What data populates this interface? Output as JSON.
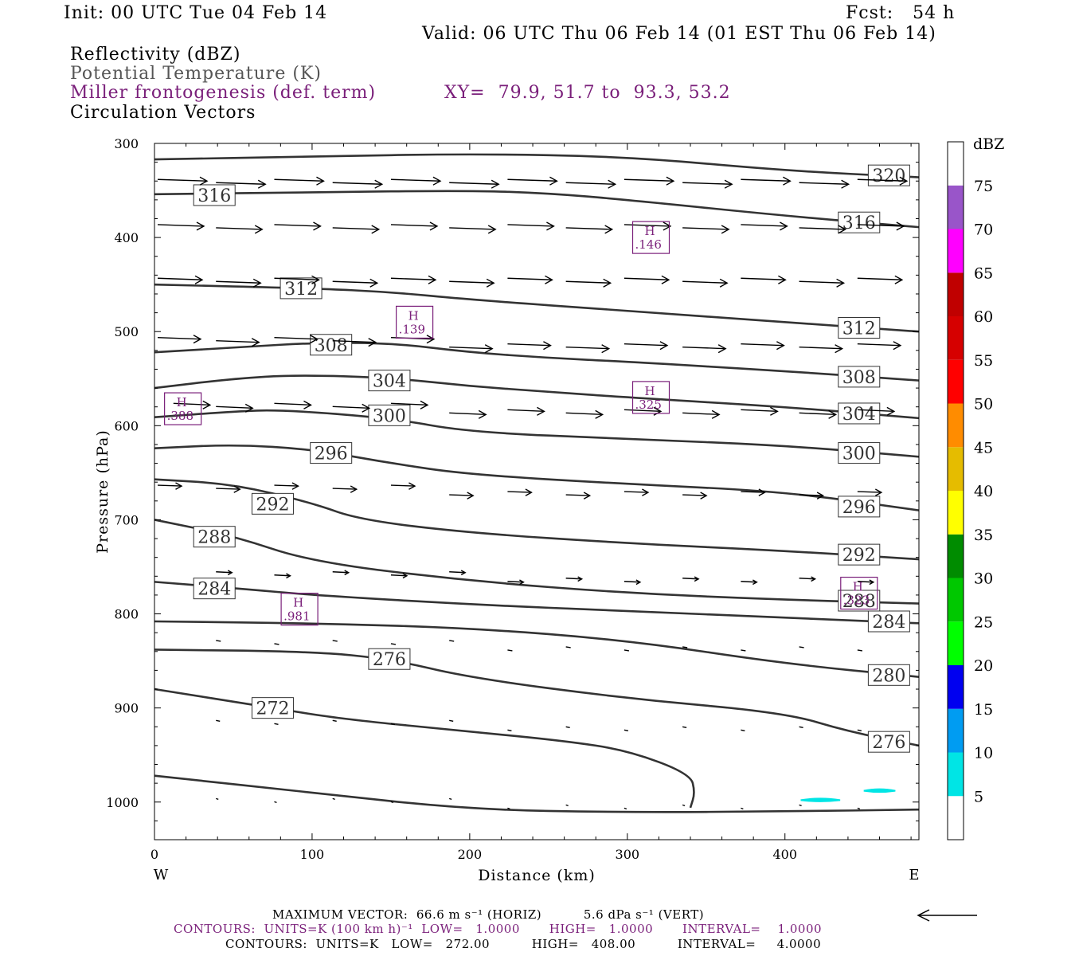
{
  "header": {
    "init": "Init: 00 UTC Tue 04 Feb 14",
    "fcst": "Fcst:   54 h",
    "valid": "Valid: 06 UTC Thu 06 Feb 14 (01 EST Thu 06 Feb 14)",
    "field1": "Reflectivity (dBZ)",
    "field2": "Potential Temperature (K)",
    "field3": "Miller frontogenesis (def. term)",
    "xy": "XY=  79.9, 51.7 to  93.3, 53.2",
    "field4": "Circulation Vectors"
  },
  "chart_data": {
    "type": "cross-section",
    "xlabel": "Distance (km)",
    "ylabel": "Pressure (hPa)",
    "xlim": [
      0,
      485
    ],
    "ylim": [
      1040,
      300
    ],
    "x_ticks": [
      "0",
      "100",
      "200",
      "300",
      "400"
    ],
    "y_ticks": [
      "300",
      "400",
      "500",
      "600",
      "700",
      "800",
      "900",
      "1000"
    ],
    "x_end_labels": {
      "left": "W",
      "right": "E"
    },
    "theta_contours": [
      {
        "label": "320",
        "points": [
          [
            0,
            317
          ],
          [
            100,
            314
          ],
          [
            200,
            311
          ],
          [
            300,
            314
          ],
          [
            400,
            329
          ],
          [
            485,
            336
          ]
        ],
        "label_at": [
          466,
          334
        ]
      },
      {
        "label": "316",
        "points": [
          [
            0,
            354
          ],
          [
            100,
            352
          ],
          [
            200,
            350
          ],
          [
            250,
            353
          ],
          [
            300,
            360
          ],
          [
            400,
            377
          ],
          [
            485,
            389
          ]
        ],
        "label_at": [
          38,
          355
        ],
        "label2_at": [
          447,
          384
        ]
      },
      {
        "label": "312",
        "points": [
          [
            0,
            450
          ],
          [
            100,
            454
          ],
          [
            150,
            458
          ],
          [
            200,
            466
          ],
          [
            300,
            478
          ],
          [
            400,
            490
          ],
          [
            485,
            500
          ]
        ],
        "label_at": [
          93,
          454
        ],
        "label2_at": [
          447,
          496
        ]
      },
      {
        "label": "308",
        "points": [
          [
            0,
            522
          ],
          [
            60,
            516
          ],
          [
            100,
            512
          ],
          [
            150,
            512
          ],
          [
            200,
            522
          ],
          [
            250,
            528
          ],
          [
            300,
            532
          ],
          [
            400,
            542
          ],
          [
            485,
            552
          ]
        ],
        "label_at": [
          112,
          514
        ],
        "label2_at": [
          447,
          548
        ]
      },
      {
        "label": "304",
        "points": [
          [
            0,
            560
          ],
          [
            50,
            550
          ],
          [
            90,
            546
          ],
          [
            150,
            549
          ],
          [
            200,
            558
          ],
          [
            250,
            564
          ],
          [
            300,
            570
          ],
          [
            400,
            580
          ],
          [
            485,
            592
          ]
        ],
        "label_at": [
          149,
          552
        ],
        "label2_at": [
          447,
          587
        ]
      },
      {
        "label": "300",
        "points": [
          [
            0,
            591
          ],
          [
            50,
            585
          ],
          [
            80,
            583
          ],
          [
            150,
            592
          ],
          [
            200,
            607
          ],
          [
            300,
            614
          ],
          [
            400,
            621
          ],
          [
            485,
            633
          ]
        ],
        "label_at": [
          149,
          589
        ],
        "label2_at": [
          447,
          629
        ]
      },
      {
        "label": "296",
        "points": [
          [
            0,
            624
          ],
          [
            50,
            620
          ],
          [
            100,
            625
          ],
          [
            150,
            640
          ],
          [
            200,
            652
          ],
          [
            300,
            662
          ],
          [
            400,
            670
          ],
          [
            485,
            690
          ]
        ],
        "label_at": [
          112,
          629
        ],
        "label2_at": [
          447,
          686
        ]
      },
      {
        "label": "292",
        "points": [
          [
            0,
            657
          ],
          [
            50,
            662
          ],
          [
            100,
            682
          ],
          [
            130,
            700
          ],
          [
            200,
            714
          ],
          [
            300,
            725
          ],
          [
            400,
            733
          ],
          [
            485,
            742
          ]
        ],
        "label_at": [
          75,
          683
        ],
        "label2_at": [
          447,
          737
        ]
      },
      {
        "label": "288",
        "points": [
          [
            0,
            700
          ],
          [
            50,
            717
          ],
          [
            100,
            745
          ],
          [
            200,
            765
          ],
          [
            300,
            778
          ],
          [
            400,
            785
          ],
          [
            485,
            789
          ]
        ],
        "label_at": [
          38,
          718
        ],
        "label2_at": [
          447,
          786
        ]
      },
      {
        "label": "284",
        "points": [
          [
            0,
            766
          ],
          [
            60,
            774
          ],
          [
            100,
            780
          ],
          [
            200,
            790
          ],
          [
            300,
            797
          ],
          [
            400,
            804
          ],
          [
            485,
            810
          ]
        ],
        "label_at": [
          38,
          773
        ],
        "label2_at": [
          466,
          808
        ]
      },
      {
        "label": "280",
        "points": [
          [
            0,
            808
          ],
          [
            100,
            810
          ],
          [
            200,
            815
          ],
          [
            300,
            828
          ],
          [
            400,
            853
          ],
          [
            485,
            867
          ]
        ],
        "label_at": [
          466,
          865
        ]
      },
      {
        "label": "276",
        "points": [
          [
            0,
            838
          ],
          [
            100,
            840
          ],
          [
            150,
            848
          ],
          [
            200,
            868
          ],
          [
            300,
            890
          ],
          [
            400,
            905
          ],
          [
            440,
            925
          ],
          [
            485,
            940
          ]
        ],
        "label_at": [
          149,
          848
        ],
        "label2_at": [
          466,
          936
        ]
      },
      {
        "label": "272",
        "points": [
          [
            0,
            880
          ],
          [
            75,
            900
          ],
          [
            120,
            912
          ],
          [
            200,
            925
          ],
          [
            260,
            935
          ],
          [
            300,
            945
          ],
          [
            340,
            970
          ],
          [
            343,
            990
          ],
          [
            340,
            1006
          ]
        ],
        "label_at": [
          75,
          900
        ]
      },
      {
        "label": "",
        "points": [
          [
            0,
            972
          ],
          [
            100,
            990
          ],
          [
            200,
            1008
          ],
          [
            300,
            1011
          ],
          [
            400,
            1010
          ],
          [
            485,
            1008
          ]
        ]
      }
    ],
    "frontogenesis_maxima": [
      {
        "label": "H",
        "value": ".146",
        "at": [
          315,
          400
        ]
      },
      {
        "label": "H",
        "value": ".139",
        "at": [
          165,
          490
        ]
      },
      {
        "label": "H",
        "value": ".325",
        "at": [
          315,
          570
        ]
      },
      {
        "label": "H",
        "value": ".388",
        "at": [
          18,
          582
        ]
      },
      {
        "label": "H",
        "value": ".981",
        "at": [
          92,
          795
        ]
      },
      {
        "label": "H",
        "value": ".323",
        "at": [
          447,
          778
        ]
      }
    ],
    "reflectivity_cells": [
      {
        "dbz": 5,
        "x": [
          410,
          435
        ],
        "p": 998
      },
      {
        "dbz": 5,
        "x": [
          450,
          470
        ],
        "p": 988
      }
    ],
    "colorbar": {
      "title": "dBZ",
      "labels": [
        "5",
        "10",
        "15",
        "20",
        "25",
        "30",
        "35",
        "40",
        "45",
        "50",
        "55",
        "60",
        "65",
        "70",
        "75"
      ],
      "colors": [
        "#ffffff",
        "#00e5e5",
        "#009cf2",
        "#0000f0",
        "#00ff00",
        "#00c800",
        "#008c00",
        "#ffff00",
        "#e5bc00",
        "#ff8c00",
        "#ff0000",
        "#d60000",
        "#c00000",
        "#ff00ff",
        "#9955c9",
        "#ffffff"
      ]
    }
  },
  "footer": {
    "line1": "MAXIMUM VECTOR:  66.6 m s⁻¹ (HORIZ)          5.6 dPa s⁻¹ (VERT)",
    "line2": "CONTOURS:  UNITS=K (100 km h)⁻¹  LOW=   1.0000       HIGH=   1.0000       INTERVAL=    1.0000",
    "line3": "CONTOURS:  UNITS=K   LOW=   272.00          HIGH=   408.00          INTERVAL=     4.0000"
  }
}
